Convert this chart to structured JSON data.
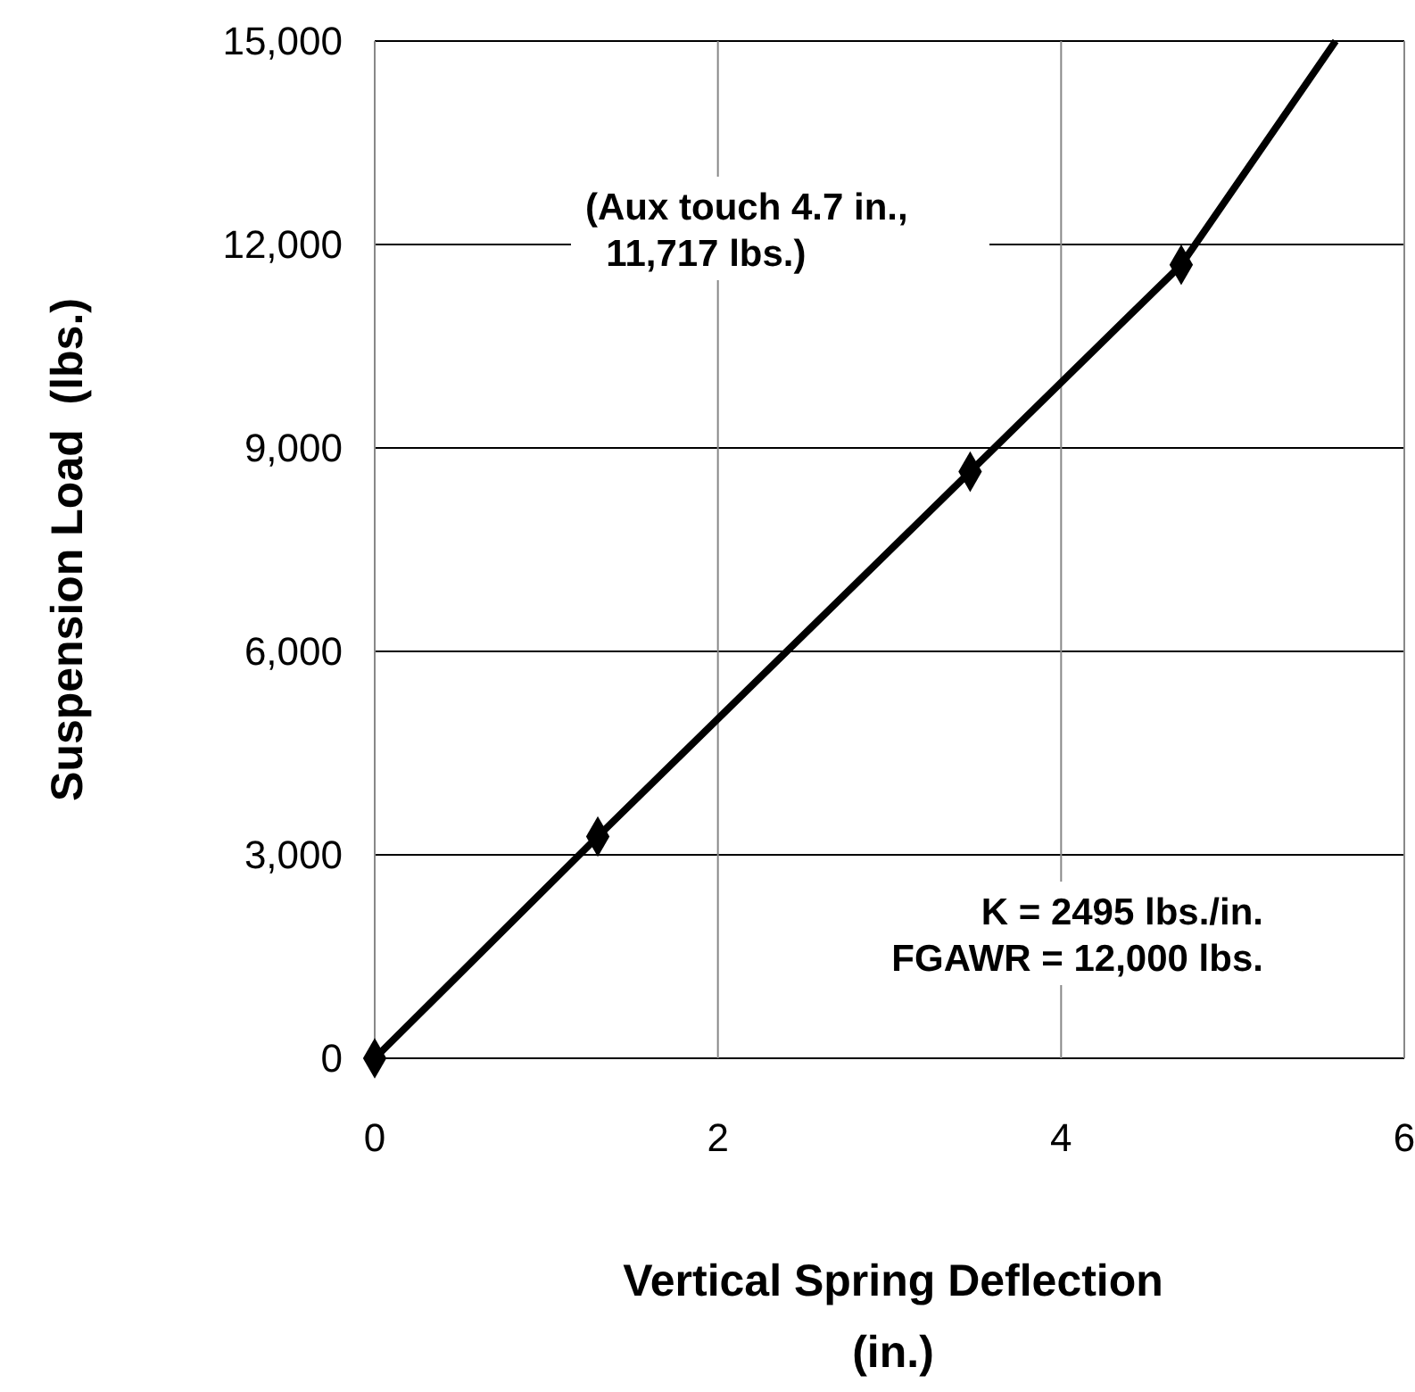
{
  "chart_data": {
    "type": "line",
    "xlabel": "Vertical Spring Deflection\n(in.)",
    "ylabel": "Suspension Load  (lbs.)",
    "xlim": [
      0,
      6
    ],
    "xticks": [
      0,
      2,
      4,
      6
    ],
    "ylim": [
      0,
      15000
    ],
    "yticks": [
      {
        "value": 0,
        "label": "0"
      },
      {
        "value": 3000,
        "label": "3,000"
      },
      {
        "value": 6000,
        "label": "6,000"
      },
      {
        "value": 9000,
        "label": "9,000"
      },
      {
        "value": 12000,
        "label": "12,000"
      },
      {
        "value": 15000,
        "label": "15,000"
      }
    ],
    "grid": true,
    "series": [
      {
        "color": "#000000",
        "marker": "none",
        "x": [
          0,
          1.3,
          3.47,
          4.7,
          5.6
        ],
        "values": [
          0,
          3270,
          8650,
          11700,
          15000
        ]
      },
      {
        "type": "scatter",
        "color": "#000000",
        "marker": "diamond",
        "x": [
          0,
          1.3,
          3.47,
          4.7
        ],
        "values": [
          0,
          3270,
          8650,
          11700
        ]
      }
    ],
    "annotations": [
      "(Aux touch 4.7 in.,\n  11,717 lbs.)",
      "K = 2495 lbs./in.\nFGAWR = 12,000 lbs."
    ]
  }
}
